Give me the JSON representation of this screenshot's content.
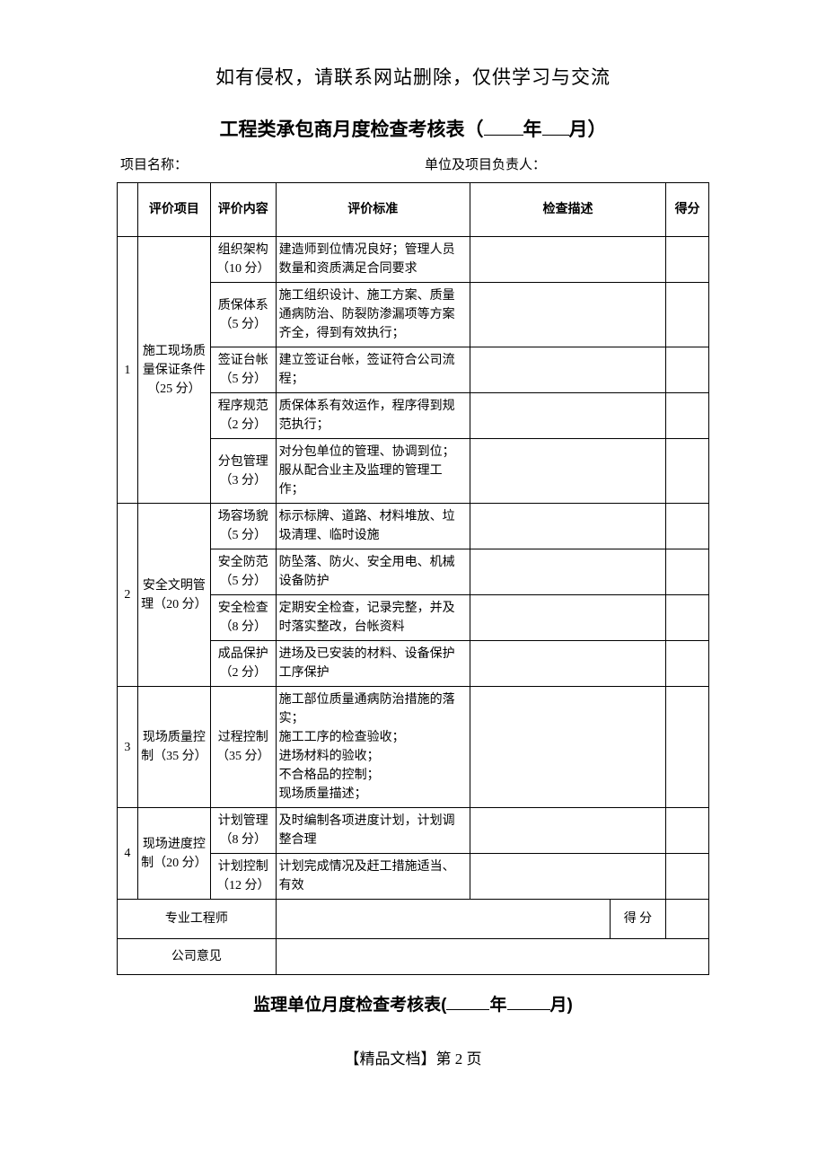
{
  "notice": "如有侵权，请联系网站删除，仅供学习与交流",
  "title_prefix": "工程类承包商月度检查考核表（",
  "title_year_suffix": "年",
  "title_month_suffix": "月）",
  "meta": {
    "project_label": "项目名称：",
    "owner_label": "单位及项目负责人："
  },
  "headers": {
    "idx": "",
    "item": "评价项目",
    "content": "评价内容",
    "standard": "评价标准",
    "desc": "检查描述",
    "score": "得分"
  },
  "sections": [
    {
      "idx": "1",
      "item": "施工现场质量保证条件（25 分）",
      "rows": [
        {
          "content": "组织架构（10 分）",
          "std": "建造师到位情况良好；管理人员数量和资质满足合同要求"
        },
        {
          "content": "质保体系（5 分）",
          "std": "施工组织设计、施工方案、质量通病防治、防裂防渗漏项等方案齐全，得到有效执行；"
        },
        {
          "content": "签证台帐（5 分）",
          "std": "建立签证台帐，签证符合公司流程；"
        },
        {
          "content": "程序规范（2 分）",
          "std": "质保体系有效运作，程序得到规范执行；"
        },
        {
          "content": "分包管理（3 分）",
          "std": "对分包单位的管理、协调到位；服从配合业主及监理的管理工作；"
        }
      ]
    },
    {
      "idx": "2",
      "item": "安全文明管理（20 分）",
      "rows": [
        {
          "content": "场容场貌（5 分）",
          "std": "标示标牌、道路、材料堆放、垃圾清理、临时设施"
        },
        {
          "content": "安全防范（5 分）",
          "std": "防坠落、防火、安全用电、机械设备防护"
        },
        {
          "content": "安全检查（8 分）",
          "std": "定期安全检查，记录完整，并及时落实整改，台帐资料"
        },
        {
          "content": "成品保护（2 分）",
          "std": "进场及已安装的材料、设备保护工序保护"
        }
      ]
    },
    {
      "idx": "3",
      "item": "现场质量控制（35 分）",
      "rows": [
        {
          "content": "过程控制（35 分）",
          "std": "施工部位质量通病防治措施的落实；\n施工工序的检查验收；\n进场材料的验收；\n不合格品的控制；\n现场质量描述；"
        }
      ]
    },
    {
      "idx": "4",
      "item": "现场进度控制（20 分）",
      "rows": [
        {
          "content": "计划管理（8 分）",
          "std": "及时编制各项进度计划，计划调整合理"
        },
        {
          "content": "计划控制（12 分）",
          "std": "计划完成情况及赶工措施适当、有效"
        }
      ]
    }
  ],
  "footer_rows": {
    "engineer_label": "专业工程师",
    "score_label": "得 分",
    "opinion_label": "公司意见"
  },
  "subtitle_prefix": "监理单位月度检查考核表(",
  "subtitle_year_suffix": "年",
  "subtitle_month_suffix": "月)",
  "page_footer": "【精品文档】第 2 页"
}
